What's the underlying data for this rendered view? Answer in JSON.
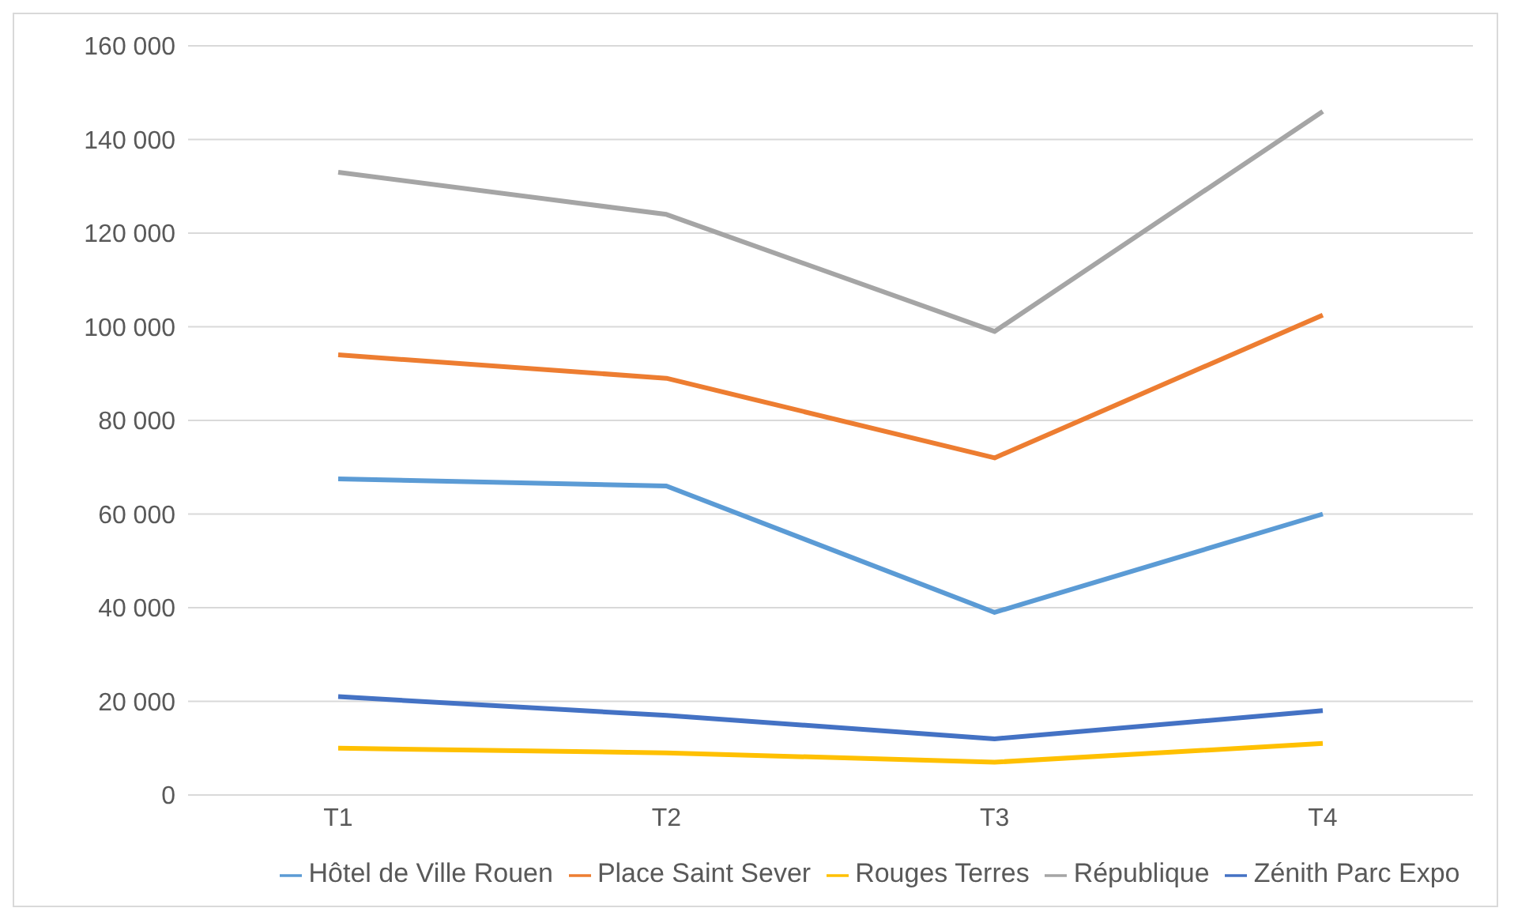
{
  "chart_data": {
    "type": "line",
    "categories": [
      "T1",
      "T2",
      "T3",
      "T4"
    ],
    "series": [
      {
        "name": "Hôtel de Ville Rouen",
        "color": "#5b9bd5",
        "values": [
          67500,
          66000,
          39000,
          60000
        ]
      },
      {
        "name": "Place Saint Sever",
        "color": "#ed7d31",
        "values": [
          94000,
          89000,
          72000,
          102500
        ]
      },
      {
        "name": "République",
        "color": "#a5a5a5",
        "values": [
          133000,
          124000,
          99000,
          146000
        ]
      },
      {
        "name": "Rouges Terres",
        "color": "#ffc000",
        "values": [
          10000,
          9000,
          7000,
          11000
        ]
      },
      {
        "name": "Zénith Parc Expo",
        "color": "#4472c4",
        "values": [
          21000,
          17000,
          12000,
          18000
        ]
      }
    ],
    "ylim": [
      0,
      160000
    ],
    "yticks": [
      {
        "value": 0,
        "label": "0"
      },
      {
        "value": 20000,
        "label": "20 000"
      },
      {
        "value": 40000,
        "label": "40 000"
      },
      {
        "value": 60000,
        "label": "60 000"
      },
      {
        "value": 80000,
        "label": "80 000"
      },
      {
        "value": 100000,
        "label": "100 000"
      },
      {
        "value": 120000,
        "label": "120 000"
      },
      {
        "value": 140000,
        "label": "140 000"
      },
      {
        "value": 160000,
        "label": "160 000"
      }
    ],
    "grid": "y",
    "legend": "bottom",
    "marker": "none",
    "line_style": "solid"
  }
}
